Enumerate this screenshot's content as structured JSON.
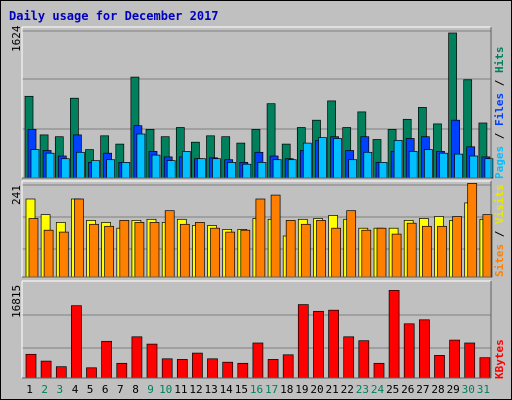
{
  "title": "Daily usage for December 2017",
  "labels": {
    "pages": "Pages",
    "files": "Files",
    "hits": "Hits",
    "visits": "Visits",
    "sites": "Sites",
    "kbytes": "KBytes",
    "sep": " / "
  },
  "colors": {
    "hits": "#00805c",
    "files": "#0040ff",
    "pages": "#00c0ff",
    "visits": "#ffff00",
    "sites": "#ff8000",
    "kbytes": "#ff0000",
    "weekend": "#00805c",
    "weekday": "#000000",
    "title": "#0000c0",
    "background": "#c0c0c0",
    "grid": "#808080"
  },
  "chart_data": [
    {
      "type": "bar",
      "name": "hits-files-pages",
      "ymax_label": "1624",
      "ylim": [
        0,
        1624
      ],
      "categories": [
        "1",
        "2",
        "3",
        "4",
        "5",
        "6",
        "7",
        "8",
        "9",
        "10",
        "11",
        "12",
        "13",
        "14",
        "15",
        "16",
        "17",
        "18",
        "19",
        "20",
        "21",
        "22",
        "23",
        "24",
        "25",
        "26",
        "27",
        "28",
        "29",
        "30",
        "31"
      ],
      "weekend": [
        false,
        true,
        true,
        false,
        false,
        false,
        false,
        false,
        true,
        true,
        false,
        false,
        false,
        false,
        false,
        true,
        true,
        false,
        false,
        false,
        false,
        false,
        true,
        true,
        false,
        false,
        false,
        false,
        false,
        true,
        true
      ],
      "series": [
        {
          "name": "Hits",
          "values": [
            890,
            470,
            450,
            870,
            310,
            460,
            370,
            1100,
            530,
            450,
            550,
            390,
            460,
            450,
            380,
            530,
            810,
            370,
            550,
            630,
            840,
            550,
            720,
            420,
            530,
            640,
            770,
            590,
            1580,
            1070,
            600
          ]
        },
        {
          "name": "Files",
          "values": [
            530,
            300,
            240,
            470,
            170,
            270,
            170,
            570,
            290,
            230,
            230,
            210,
            220,
            200,
            170,
            280,
            240,
            210,
            300,
            410,
            450,
            300,
            450,
            170,
            290,
            430,
            450,
            290,
            630,
            340,
            230
          ]
        },
        {
          "name": "Pages",
          "values": [
            310,
            270,
            210,
            280,
            190,
            200,
            170,
            480,
            250,
            190,
            290,
            210,
            210,
            170,
            150,
            170,
            200,
            200,
            380,
            440,
            430,
            200,
            280,
            170,
            410,
            290,
            310,
            270,
            260,
            240,
            210
          ]
        }
      ]
    },
    {
      "type": "bar",
      "name": "visits-sites",
      "ymax_label": "241",
      "ylim": [
        0,
        241
      ],
      "categories": [
        "1",
        "2",
        "3",
        "4",
        "5",
        "6",
        "7",
        "8",
        "9",
        "10",
        "11",
        "12",
        "13",
        "14",
        "15",
        "16",
        "17",
        "18",
        "19",
        "20",
        "21",
        "22",
        "23",
        "24",
        "25",
        "26",
        "27",
        "28",
        "29",
        "30",
        "31"
      ],
      "series": [
        {
          "name": "Visits",
          "values": [
            200,
            160,
            140,
            200,
            145,
            140,
            125,
            145,
            148,
            140,
            148,
            132,
            132,
            122,
            122,
            150,
            148,
            105,
            148,
            150,
            158,
            148,
            125,
            125,
            125,
            145,
            150,
            155,
            145,
            190,
            148
          ]
        },
        {
          "name": "Sites",
          "values": [
            150,
            120,
            115,
            200,
            135,
            130,
            145,
            140,
            140,
            170,
            135,
            140,
            125,
            115,
            120,
            200,
            210,
            145,
            135,
            145,
            125,
            170,
            120,
            125,
            110,
            138,
            130,
            130,
            155,
            240,
            160
          ]
        }
      ]
    },
    {
      "type": "bar",
      "name": "kbytes",
      "ymax_label": "16815",
      "ylim": [
        0,
        16815
      ],
      "categories": [
        "1",
        "2",
        "3",
        "4",
        "5",
        "6",
        "7",
        "8",
        "9",
        "10",
        "11",
        "12",
        "13",
        "14",
        "15",
        "16",
        "17",
        "18",
        "19",
        "20",
        "21",
        "22",
        "23",
        "24",
        "25",
        "26",
        "27",
        "28",
        "29",
        "30",
        "31"
      ],
      "series": [
        {
          "name": "KBytes",
          "values": [
            4200,
            3000,
            2000,
            12800,
            1800,
            6500,
            2600,
            7300,
            6000,
            3400,
            3300,
            4400,
            3400,
            2800,
            2600,
            6200,
            3300,
            4100,
            13000,
            11800,
            12000,
            7300,
            6600,
            2600,
            15500,
            9600,
            10300,
            4000,
            6700,
            6200,
            3600
          ]
        }
      ]
    }
  ]
}
